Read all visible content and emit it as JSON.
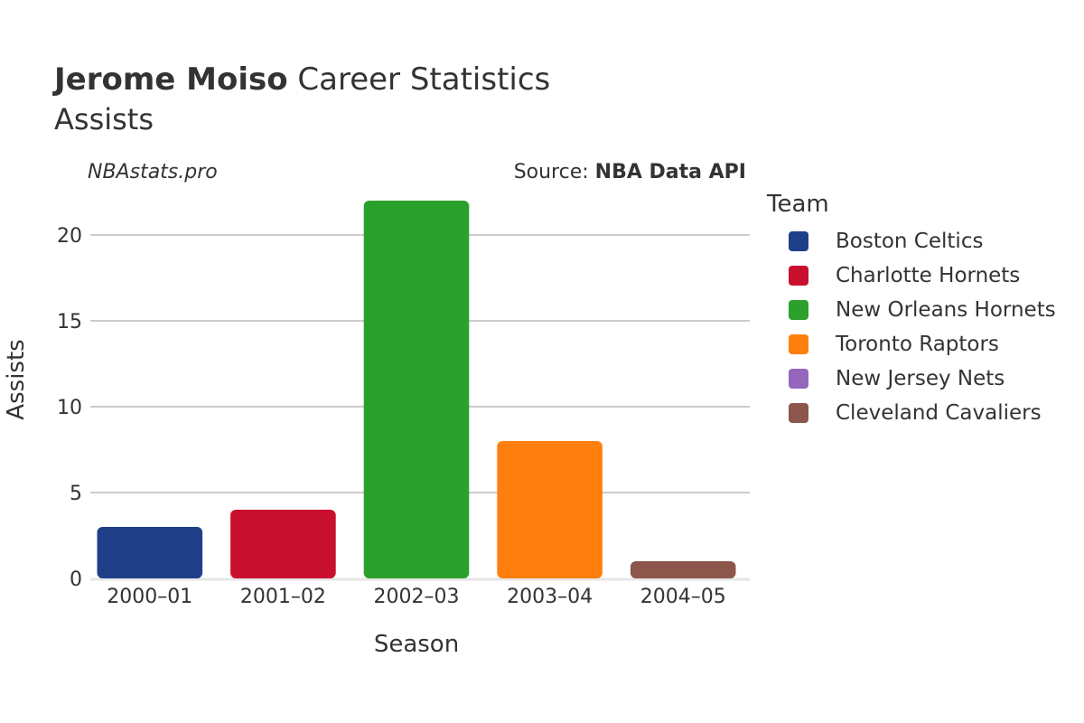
{
  "header": {
    "title_bold": "Jerome Moiso",
    "title_rest": " Career Statistics",
    "subtitle": "Assists",
    "credit": "NBAstats.pro",
    "source_prefix": "Source: ",
    "source_name": "NBA Data API"
  },
  "legend": {
    "title": "Team",
    "placement": "right",
    "items": [
      {
        "label": "Boston Celtics",
        "color": "#1f3f88"
      },
      {
        "label": "Charlotte Hornets",
        "color": "#c8102e"
      },
      {
        "label": "New Orleans Hornets",
        "color": "#2ca02c"
      },
      {
        "label": "Toronto Raptors",
        "color": "#ff7f0e"
      },
      {
        "label": "New Jersey Nets",
        "color": "#9467bd"
      },
      {
        "label": "Cleveland Cavaliers",
        "color": "#8c564b"
      }
    ]
  },
  "chart_data": {
    "type": "bar",
    "title": "Jerome Moiso Career Statistics",
    "subtitle": "Assists",
    "xlabel": "Season",
    "ylabel": "Assists",
    "categories": [
      "2000–01",
      "2001–02",
      "2002–03",
      "2003–04",
      "2004–05"
    ],
    "values": [
      3,
      4,
      22,
      8,
      1
    ],
    "bar_teams": [
      "Boston Celtics",
      "Charlotte Hornets",
      "New Orleans Hornets",
      "Toronto Raptors",
      "Cleveland Cavaliers"
    ],
    "bar_colors": [
      "#1f3f88",
      "#c8102e",
      "#2ca02c",
      "#ff7f0e",
      "#8c564b"
    ],
    "ylim": [
      0,
      23
    ],
    "yticks": [
      0,
      5,
      10,
      15,
      20
    ],
    "grid": true,
    "legend_title": "Team"
  }
}
